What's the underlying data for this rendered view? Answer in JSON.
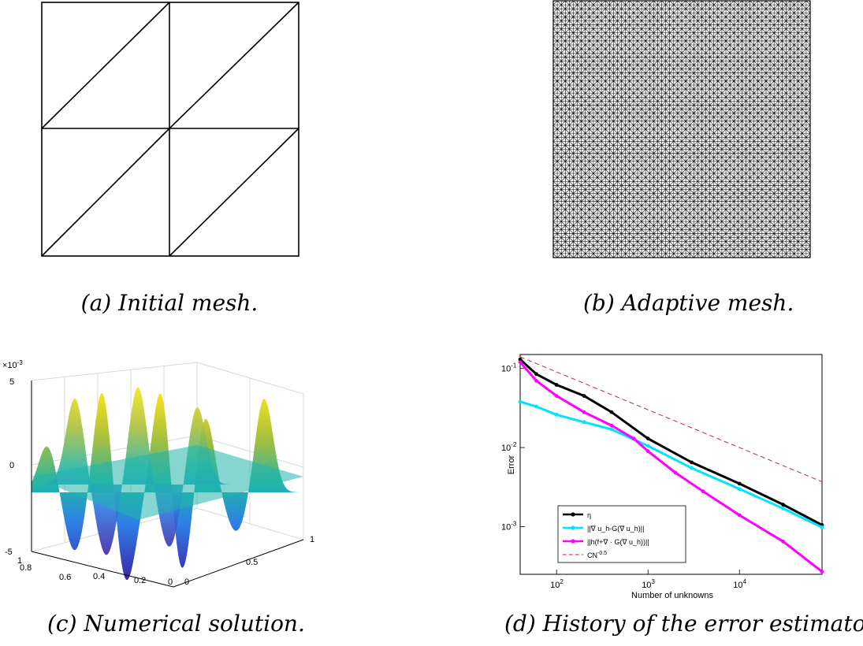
{
  "captions": {
    "a": "(a) Initial mesh.",
    "b": "(b) Adaptive mesh.",
    "c": "(c) Numerical solution.",
    "d": "(d) History of the error estimator."
  },
  "surface_plot": {
    "z_exponent_label": "×10",
    "z_exponent_power": "-3",
    "z_ticks": [
      "5",
      "0",
      "-5"
    ],
    "y_ticks": [
      "1",
      "0.8",
      "0.6",
      "0.4",
      "0.2",
      "0"
    ],
    "x_ticks": [
      "0",
      "0.5",
      "1"
    ],
    "colors": {
      "low": "#3d26a8",
      "mid": "#20b5ab",
      "high": "#f9e41a"
    }
  },
  "chart_data": {
    "type": "line",
    "title": "",
    "xlabel": "Number of unknowns",
    "ylabel": "Error",
    "xscale": "log",
    "yscale": "log",
    "xlim": [
      40,
      80000
    ],
    "ylim": [
      0.00025,
      0.15
    ],
    "x_ticks": [
      "10",
      "10",
      "10"
    ],
    "x_tick_powers": [
      "2",
      "3",
      "4"
    ],
    "y_ticks": [
      "10",
      "10",
      "10"
    ],
    "y_tick_powers": [
      "-1",
      "-2",
      "-3"
    ],
    "legend_placement": "bottom-left",
    "series": [
      {
        "name": "η",
        "color": "#000000",
        "marker": "circle",
        "x": [
          40,
          60,
          100,
          200,
          400,
          1000,
          3000,
          10000,
          30000,
          80000
        ],
        "y": [
          0.13,
          0.085,
          0.062,
          0.045,
          0.028,
          0.013,
          0.0065,
          0.0035,
          0.0019,
          0.00105
        ]
      },
      {
        "name": "||∇ u_h-G(∇ u_h)||",
        "color": "#00e5ff",
        "marker": "star",
        "x": [
          40,
          60,
          100,
          200,
          400,
          1000,
          3000,
          10000,
          30000,
          80000
        ],
        "y": [
          0.038,
          0.033,
          0.026,
          0.021,
          0.017,
          0.0105,
          0.0055,
          0.003,
          0.0017,
          0.00098
        ]
      },
      {
        "name": "||h(f+∇ · G(∇ u_h))||",
        "color": "#ff00ff",
        "marker": "x",
        "x": [
          40,
          60,
          100,
          200,
          400,
          700,
          1000,
          2000,
          4000,
          10000,
          30000,
          80000
        ],
        "y": [
          0.12,
          0.07,
          0.045,
          0.028,
          0.019,
          0.013,
          0.009,
          0.0048,
          0.0028,
          0.0014,
          0.00065,
          0.00027
        ]
      },
      {
        "name": "CN",
        "name_power": "-0.5",
        "color": "#b03050",
        "dashed": true,
        "x": [
          40,
          80000
        ],
        "y": [
          0.14,
          0.0037
        ]
      }
    ]
  }
}
